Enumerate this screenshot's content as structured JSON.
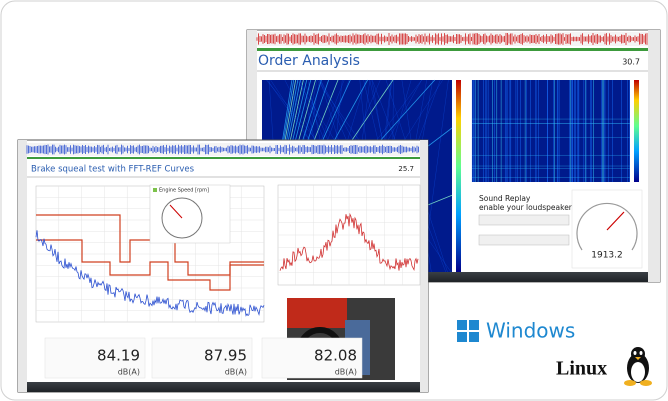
{
  "back_window": {
    "title": "Order Analysis",
    "value": 30.7,
    "sound_replay_title": "Sound Replay",
    "sound_replay_subtitle": "enable your loudspeaker",
    "gauge_value": 1913.2
  },
  "front_window": {
    "title": "Brake squeal test with FFT-REF Curves",
    "value": 25.7,
    "gauge_label": "Engine Speed [rpm]",
    "readouts": [
      {
        "value": 84.19,
        "unit": "dB(A)"
      },
      {
        "value": 87.95,
        "unit": "dB(A)"
      },
      {
        "value": 82.08,
        "unit": "dB(A)"
      }
    ]
  },
  "logos": {
    "windows": "Windows",
    "linux": "Linux"
  }
}
